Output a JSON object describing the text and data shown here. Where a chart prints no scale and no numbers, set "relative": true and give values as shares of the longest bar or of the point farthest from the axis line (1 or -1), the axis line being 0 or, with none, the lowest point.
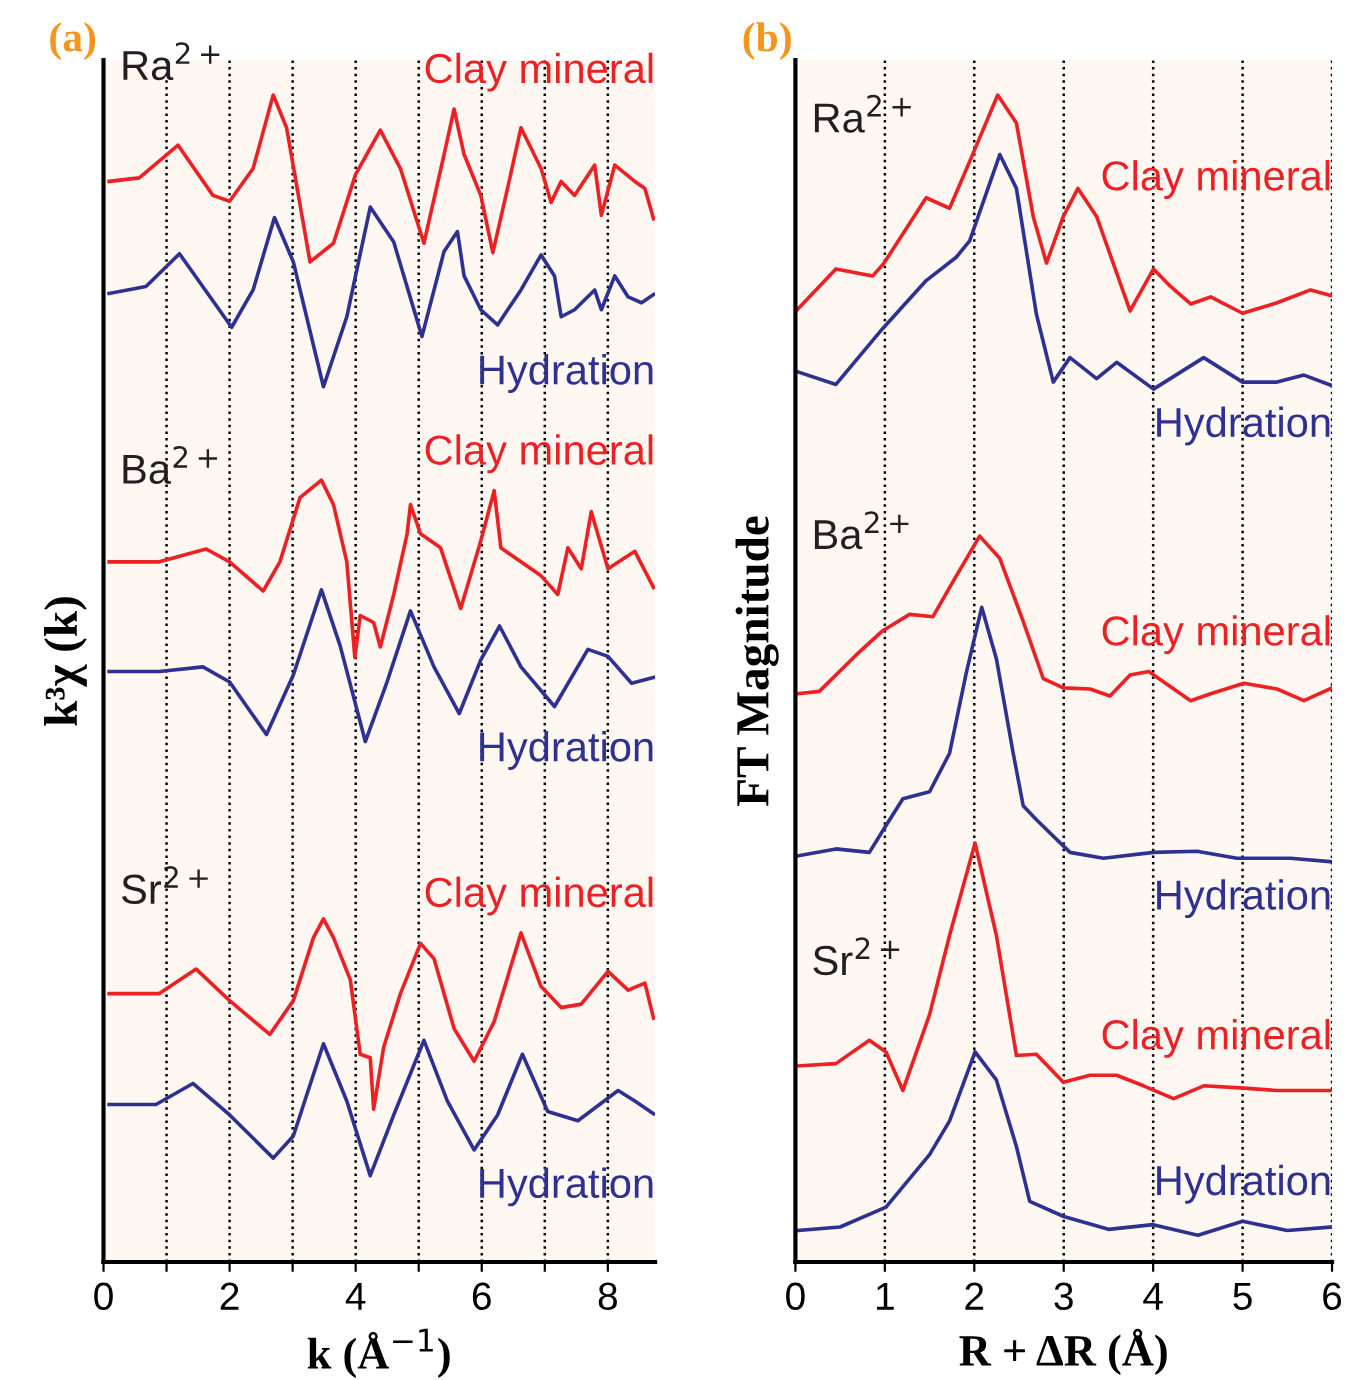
{
  "chart_data": [
    {
      "type": "line",
      "title": "(a)",
      "xlabel": "k (Å$^{−1}$)",
      "ylabel": "k³χ (k)",
      "relative": true,
      "xlim": [
        0,
        8.75
      ],
      "xticks": [
        0,
        {
          "value": 1,
          "label": null
        },
        2,
        {
          "value": 3,
          "label": null
        },
        4,
        {
          "value": 5,
          "label": null
        },
        6,
        {
          "value": 7,
          "label": null
        },
        8
      ],
      "grid": "x",
      "legend": false,
      "line_style": "solid",
      "annotations": [
        "Ra$^{2+}$",
        "Ba$^{2+}$",
        "Sr$^{2+}$"
      ],
      "series": [
        {
          "name": "Clay mineral",
          "color": "#ed2024",
          "x": [
            0.089,
            0.567,
            1.183,
            1.736,
            2.001,
            2.373,
            2.692,
            2.904,
            3.276,
            3.648,
            3.999,
            4.391,
            4.71,
            5.083,
            5.402,
            5.561,
            5.72,
            5.985,
            6.176,
            6.409,
            6.622,
            6.941,
            7.1,
            7.26,
            7.472,
            7.791,
            7.897,
            8.11,
            8.429,
            8.588,
            8.725
          ],
          "values": [
            0.926,
            0.929,
            0.957,
            0.914,
            0.909,
            0.937,
            1.0,
            0.972,
            0.857,
            0.873,
            0.932,
            0.97,
            0.937,
            0.873,
            0.949,
            0.988,
            0.949,
            0.914,
            0.865,
            0.92,
            0.972,
            0.937,
            0.908,
            0.926,
            0.914,
            0.94,
            0.897,
            0.94,
            0.926,
            0.92,
            0.894
          ]
        },
        {
          "name": "Hydration",
          "color": "#2e3192",
          "x": [
            0.089,
            0.673,
            1.205,
            2.033,
            2.373,
            2.712,
            3.011,
            3.489,
            3.859,
            4.231,
            4.604,
            5.051,
            5.402,
            5.614,
            5.72,
            5.985,
            6.251,
            6.622,
            6.941,
            7.154,
            7.26,
            7.472,
            7.791,
            7.897,
            8.11,
            8.322,
            8.535,
            8.725
          ],
          "values": [
            0.83,
            0.836,
            0.864,
            0.801,
            0.833,
            0.895,
            0.857,
            0.75,
            0.81,
            0.904,
            0.874,
            0.793,
            0.866,
            0.883,
            0.845,
            0.816,
            0.803,
            0.833,
            0.863,
            0.845,
            0.81,
            0.816,
            0.833,
            0.816,
            0.845,
            0.827,
            0.822,
            0.829
          ]
        },
        {
          "name": "Clay mineral",
          "color": "#ed2024",
          "x": [
            0.089,
            0.886,
            1.628,
            2.001,
            2.533,
            2.798,
            3.117,
            3.457,
            3.648,
            3.859,
            3.987,
            4.072,
            4.285,
            4.391,
            4.604,
            4.816,
            4.869,
            5.029,
            5.347,
            5.666,
            5.985,
            6.197,
            6.303,
            6.622,
            6.941,
            7.206,
            7.366,
            7.578,
            7.737,
            8.002,
            8.429,
            8.725
          ],
          "values": [
            0.6,
            0.6,
            0.611,
            0.6,
            0.575,
            0.6,
            0.655,
            0.67,
            0.649,
            0.6,
            0.518,
            0.554,
            0.548,
            0.527,
            0.572,
            0.624,
            0.649,
            0.624,
            0.612,
            0.56,
            0.618,
            0.661,
            0.612,
            0.6,
            0.588,
            0.572,
            0.612,
            0.594,
            0.643,
            0.594,
            0.609,
            0.578
          ]
        },
        {
          "name": "Hydration",
          "color": "#2e3192",
          "x": [
            0.089,
            0.886,
            1.577,
            2.001,
            2.585,
            3.011,
            3.457,
            3.754,
            4.153,
            4.497,
            4.869,
            5.242,
            5.643,
            5.985,
            6.282,
            6.622,
            7.154,
            7.684,
            8.002,
            8.376,
            8.725
          ],
          "values": [
            0.506,
            0.506,
            0.51,
            0.497,
            0.452,
            0.503,
            0.576,
            0.528,
            0.446,
            0.497,
            0.558,
            0.51,
            0.47,
            0.516,
            0.545,
            0.51,
            0.476,
            0.525,
            0.519,
            0.496,
            0.501
          ]
        },
        {
          "name": "Clay mineral",
          "color": "#ed2024",
          "x": [
            0.089,
            0.886,
            1.47,
            2.001,
            2.638,
            3.011,
            3.33,
            3.489,
            3.648,
            3.914,
            4.072,
            4.231,
            4.285,
            4.444,
            4.71,
            5.029,
            5.242,
            5.561,
            5.879,
            6.197,
            6.622,
            6.941,
            7.26,
            7.578,
            8.002,
            8.322,
            8.588,
            8.725
          ],
          "values": [
            0.23,
            0.23,
            0.251,
            0.224,
            0.195,
            0.224,
            0.278,
            0.294,
            0.278,
            0.242,
            0.178,
            0.175,
            0.131,
            0.184,
            0.23,
            0.273,
            0.26,
            0.2,
            0.172,
            0.206,
            0.282,
            0.236,
            0.218,
            0.221,
            0.249,
            0.233,
            0.239,
            0.209
          ]
        },
        {
          "name": "Hydration",
          "color": "#2e3192",
          "x": [
            0.089,
            0.832,
            1.418,
            2.001,
            2.692,
            3.011,
            3.489,
            3.859,
            4.231,
            4.604,
            5.083,
            5.453,
            5.879,
            6.251,
            6.645,
            7.046,
            7.525,
            8.163,
            8.429,
            8.725
          ],
          "values": [
            0.135,
            0.135,
            0.153,
            0.126,
            0.089,
            0.108,
            0.187,
            0.138,
            0.074,
            0.126,
            0.19,
            0.138,
            0.096,
            0.126,
            0.178,
            0.129,
            0.121,
            0.147,
            0.138,
            0.127
          ]
        }
      ]
    },
    {
      "type": "line",
      "title": "(b)",
      "xlabel": "R + ΔR (Å)",
      "ylabel": "FT Magnitude",
      "relative": true,
      "xlim": [
        0,
        6
      ],
      "xticks": [
        0,
        1,
        2,
        3,
        4,
        5,
        6
      ],
      "grid": "x",
      "legend": false,
      "line_style": "solid",
      "annotations": [
        "Ra$^{2+}$",
        "Ba$^{2+}$",
        "Sr$^{2+}$"
      ],
      "series": [
        {
          "name": "Clay mineral",
          "color": "#ed2024",
          "x": [
            0.02,
            0.453,
            0.865,
            0.991,
            1.462,
            1.724,
            1.987,
            2.262,
            2.471,
            2.659,
            2.807,
            2.996,
            3.159,
            3.368,
            3.742,
            4.004,
            4.195,
            4.419,
            4.643,
            5.0,
            5.386,
            5.76,
            6.0
          ],
          "values": [
            0.816,
            0.851,
            0.845,
            0.856,
            0.912,
            0.903,
            0.95,
            1.0,
            0.976,
            0.896,
            0.856,
            0.896,
            0.92,
            0.896,
            0.815,
            0.851,
            0.836,
            0.821,
            0.827,
            0.813,
            0.822,
            0.833,
            0.828
          ]
        },
        {
          "name": "Hydration",
          "color": "#2e3192",
          "x": [
            0.02,
            0.453,
            0.977,
            1.462,
            1.798,
            1.948,
            2.285,
            2.471,
            2.695,
            2.883,
            3.07,
            3.368,
            3.592,
            4.004,
            4.565,
            5.0,
            5.386,
            5.686,
            6.0
          ],
          "values": [
            0.763,
            0.752,
            0.8,
            0.841,
            0.861,
            0.875,
            0.949,
            0.92,
            0.812,
            0.754,
            0.775,
            0.757,
            0.771,
            0.748,
            0.775,
            0.754,
            0.754,
            0.76,
            0.751
          ]
        },
        {
          "name": "Clay mineral",
          "color": "#ed2024",
          "x": [
            0.02,
            0.267,
            0.677,
            0.977,
            1.276,
            1.538,
            1.762,
            2.06,
            2.285,
            2.547,
            2.771,
            2.996,
            3.294,
            3.518,
            3.742,
            3.951,
            4.195,
            4.419,
            4.643,
            5.016,
            5.386,
            5.686,
            6.0
          ],
          "values": [
            0.487,
            0.489,
            0.52,
            0.541,
            0.555,
            0.553,
            0.583,
            0.622,
            0.603,
            0.549,
            0.5,
            0.492,
            0.491,
            0.485,
            0.503,
            0.506,
            0.493,
            0.481,
            0.487,
            0.496,
            0.491,
            0.481,
            0.492
          ]
        },
        {
          "name": "Hydration",
          "color": "#2e3192",
          "x": [
            0.02,
            0.453,
            0.827,
            1.013,
            1.202,
            1.5,
            1.724,
            1.911,
            2.083,
            2.247,
            2.435,
            2.547,
            2.695,
            3.07,
            3.444,
            4.004,
            4.489,
            4.937,
            5.536,
            6.0
          ],
          "values": [
            0.348,
            0.354,
            0.351,
            0.374,
            0.397,
            0.403,
            0.436,
            0.505,
            0.561,
            0.517,
            0.436,
            0.391,
            0.379,
            0.351,
            0.346,
            0.351,
            0.352,
            0.346,
            0.346,
            0.343
          ]
        },
        {
          "name": "Clay mineral",
          "color": "#ed2024",
          "x": [
            0.02,
            0.453,
            0.827,
            1.013,
            1.202,
            1.5,
            1.724,
            2.009,
            2.247,
            2.471,
            2.695,
            2.996,
            3.294,
            3.592,
            3.892,
            4.229,
            4.565,
            5.016,
            5.386,
            6.0
          ],
          "values": [
            0.168,
            0.17,
            0.19,
            0.18,
            0.147,
            0.212,
            0.28,
            0.359,
            0.28,
            0.177,
            0.178,
            0.154,
            0.16,
            0.16,
            0.151,
            0.14,
            0.151,
            0.149,
            0.147,
            0.147
          ]
        },
        {
          "name": "Hydration",
          "color": "#2e3192",
          "x": [
            0.02,
            0.5,
            1.013,
            1.5,
            1.724,
            2.009,
            2.247,
            2.471,
            2.62,
            3.0,
            3.5,
            4.0,
            4.5,
            5.0,
            5.5,
            6.0
          ],
          "values": [
            0.027,
            0.03,
            0.047,
            0.092,
            0.121,
            0.18,
            0.156,
            0.099,
            0.052,
            0.039,
            0.028,
            0.032,
            0.023,
            0.035,
            0.027,
            0.03
          ]
        }
      ]
    }
  ]
}
